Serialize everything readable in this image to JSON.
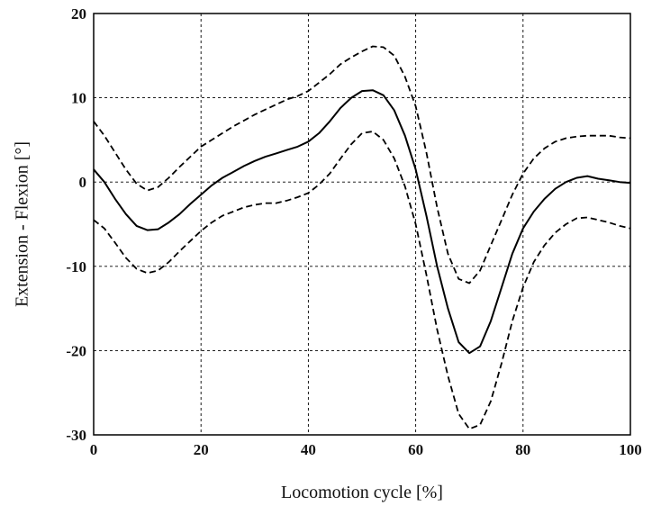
{
  "chart_data": {
    "type": "line",
    "title": "",
    "xlabel": "Locomotion cycle [%]",
    "ylabel": "Extension - Flexion [°]",
    "xlim": [
      0,
      100
    ],
    "ylim": [
      -30,
      20
    ],
    "xticks": [
      "0",
      "20",
      "40",
      "60",
      "80",
      "100"
    ],
    "yticks": [
      "20",
      "10",
      "0",
      "-10",
      "-20",
      "-30"
    ],
    "grid": true,
    "legend": "none",
    "series": [
      {
        "style": "solid",
        "x": [
          0,
          2,
          4,
          6,
          8,
          10,
          12,
          14,
          16,
          18,
          20,
          22,
          24,
          26,
          28,
          30,
          32,
          34,
          36,
          38,
          40,
          42,
          44,
          46,
          48,
          50,
          52,
          54,
          56,
          58,
          60,
          62,
          64,
          66,
          68,
          70,
          72,
          74,
          76,
          78,
          80,
          82,
          84,
          86,
          88,
          90,
          92,
          94,
          96,
          98,
          100
        ],
        "y": [
          1.5,
          0,
          -2,
          -3.8,
          -5.2,
          -5.7,
          -5.6,
          -4.8,
          -3.8,
          -2.6,
          -1.5,
          -0.4,
          0.5,
          1.2,
          1.9,
          2.5,
          3,
          3.4,
          3.8,
          4.2,
          4.8,
          5.8,
          7.2,
          8.8,
          10,
          10.8,
          10.9,
          10.3,
          8.5,
          5.5,
          1.5,
          -4,
          -10,
          -15,
          -19,
          -20.3,
          -19.5,
          -16.5,
          -12.5,
          -8.5,
          -5.5,
          -3.5,
          -2,
          -0.8,
          0,
          0.5,
          0.7,
          0.4,
          0.2,
          0,
          -0.1
        ]
      },
      {
        "style": "dashed",
        "x": [
          0,
          2,
          4,
          6,
          8,
          10,
          12,
          14,
          16,
          18,
          20,
          22,
          24,
          26,
          28,
          30,
          32,
          34,
          36,
          38,
          40,
          42,
          44,
          46,
          48,
          50,
          52,
          54,
          56,
          58,
          60,
          62,
          64,
          66,
          68,
          70,
          72,
          74,
          76,
          78,
          80,
          82,
          84,
          86,
          88,
          90,
          92,
          94,
          96,
          98,
          100
        ],
        "y": [
          7.2,
          5.5,
          3.5,
          1.5,
          -0.2,
          -1,
          -0.6,
          0.5,
          1.8,
          3,
          4.2,
          5,
          5.8,
          6.6,
          7.3,
          8,
          8.6,
          9.2,
          9.8,
          10.2,
          10.8,
          11.8,
          12.8,
          14,
          14.8,
          15.5,
          16.1,
          16,
          15,
          12.5,
          9,
          3.5,
          -3,
          -8.5,
          -11.5,
          -12,
          -10.5,
          -7.5,
          -4.5,
          -1.5,
          1,
          2.8,
          4,
          4.8,
          5.2,
          5.4,
          5.5,
          5.5,
          5.5,
          5.3,
          5.2
        ]
      },
      {
        "style": "dashed",
        "x": [
          0,
          2,
          4,
          6,
          8,
          10,
          12,
          14,
          16,
          18,
          20,
          22,
          24,
          26,
          28,
          30,
          32,
          34,
          36,
          38,
          40,
          42,
          44,
          46,
          48,
          50,
          52,
          54,
          56,
          58,
          60,
          62,
          64,
          66,
          68,
          70,
          72,
          74,
          76,
          78,
          80,
          82,
          84,
          86,
          88,
          90,
          92,
          94,
          96,
          98,
          100
        ],
        "y": [
          -4.5,
          -5.5,
          -7.2,
          -9,
          -10.3,
          -10.8,
          -10.5,
          -9.5,
          -8.2,
          -7,
          -5.8,
          -4.8,
          -4,
          -3.5,
          -3,
          -2.7,
          -2.5,
          -2.5,
          -2.2,
          -1.8,
          -1.3,
          -0.3,
          1,
          2.8,
          4.5,
          5.8,
          6,
          5,
          2.8,
          -0.5,
          -5,
          -11,
          -17.5,
          -23,
          -27.5,
          -29.3,
          -28.8,
          -26,
          -21.5,
          -16.5,
          -12.5,
          -9.5,
          -7.5,
          -6,
          -5,
          -4.3,
          -4.2,
          -4.5,
          -4.8,
          -5.2,
          -5.5
        ]
      }
    ]
  }
}
